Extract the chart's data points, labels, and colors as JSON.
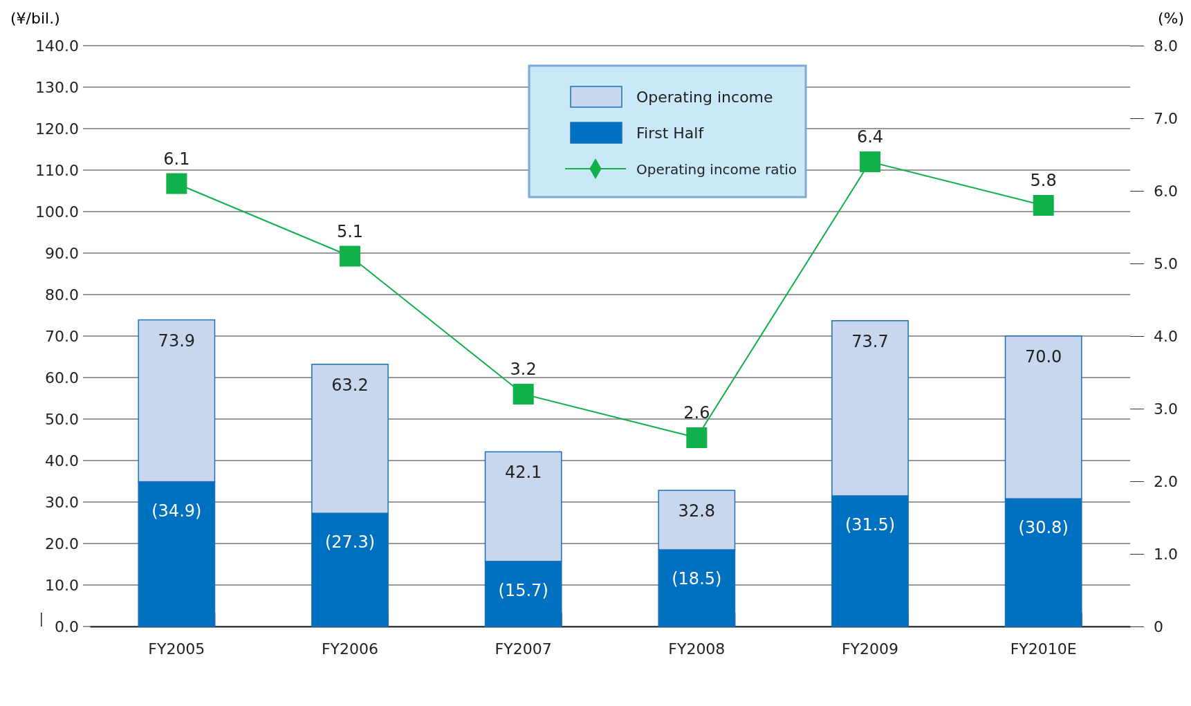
{
  "chart_data": {
    "type": "bar",
    "stacked": true,
    "ylabel": "(¥/bil.)",
    "y2label": "(%)",
    "categories": [
      "FY2005",
      "FY2006",
      "FY2007",
      "FY2008",
      "FY2009",
      "FY2010E"
    ],
    "series": [
      {
        "name": "First Half",
        "color": "#0070c0",
        "values": [
          34.9,
          27.3,
          15.7,
          18.5,
          31.5,
          30.8
        ],
        "value_labels": [
          "(34.9)",
          "(27.3)",
          "(15.7)",
          "(18.5)",
          "(31.5)",
          "(30.8)"
        ]
      },
      {
        "name": "Operating income",
        "color": "#c8d6ee",
        "values": [
          39.0,
          35.9,
          26.4,
          14.3,
          42.2,
          39.2
        ]
      },
      {
        "name": "Operating income ratio",
        "type": "line",
        "axis": "y2",
        "color": "#10b04a",
        "marker": "square",
        "values": [
          6.1,
          5.1,
          3.2,
          2.6,
          6.4,
          5.8
        ],
        "value_labels": [
          "6.1",
          "5.1",
          "3.2",
          "2.6",
          "6.4",
          "5.8"
        ]
      }
    ],
    "totals": [
      "73.9",
      "63.2",
      "42.1",
      "32.8",
      "73.7",
      "70.0"
    ],
    "ylim": [
      0,
      140
    ],
    "yticks": [
      {
        "value": 0,
        "label": "0.0"
      },
      {
        "value": 10,
        "label": "10.0"
      },
      {
        "value": 20,
        "label": "20.0"
      },
      {
        "value": 30,
        "label": "30.0"
      },
      {
        "value": 40,
        "label": "40.0"
      },
      {
        "value": 50,
        "label": "50.0"
      },
      {
        "value": 60,
        "label": "60.0"
      },
      {
        "value": 70,
        "label": "70.0"
      },
      {
        "value": 80,
        "label": "80.0"
      },
      {
        "value": 90,
        "label": "90.0"
      },
      {
        "value": 100,
        "label": "100.0"
      },
      {
        "value": 110,
        "label": "110.0"
      },
      {
        "value": 120,
        "label": "120.0"
      },
      {
        "value": 130,
        "label": "130.0"
      },
      {
        "value": 140,
        "label": "140.0"
      }
    ],
    "y2lim": [
      0,
      8
    ],
    "y2ticks": [
      0,
      {
        "value": 1,
        "label": "1.0"
      },
      {
        "value": 2,
        "label": "2.0"
      },
      {
        "value": 3,
        "label": "3.0"
      },
      {
        "value": 4,
        "label": "4.0"
      },
      {
        "value": 5,
        "label": "5.0"
      },
      {
        "value": 6,
        "label": "6.0"
      },
      {
        "value": 7,
        "label": "7.0"
      },
      {
        "value": 8,
        "label": "8.0"
      }
    ],
    "grid": "y",
    "legend": "top"
  }
}
